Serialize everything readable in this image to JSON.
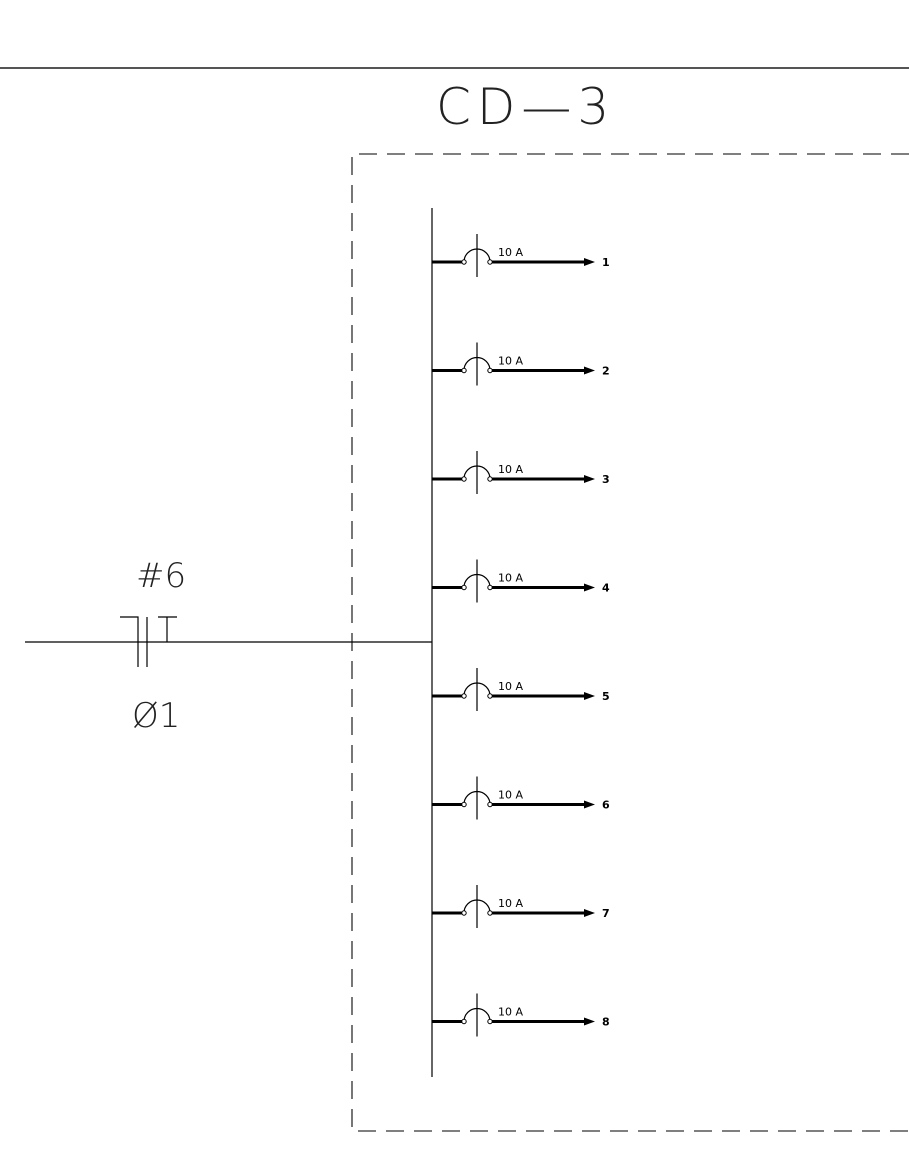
{
  "panel": {
    "title": "CD—3",
    "feeder_size": "#6",
    "phase": "Ø1"
  },
  "circuits": [
    {
      "number": "1",
      "breaker": "10 A"
    },
    {
      "number": "2",
      "breaker": "10 A"
    },
    {
      "number": "3",
      "breaker": "10 A"
    },
    {
      "number": "4",
      "breaker": "10 A"
    },
    {
      "number": "5",
      "breaker": "10 A"
    },
    {
      "number": "6",
      "breaker": "10 A"
    },
    {
      "number": "7",
      "breaker": "10 A"
    },
    {
      "number": "8",
      "breaker": "10 A"
    }
  ]
}
